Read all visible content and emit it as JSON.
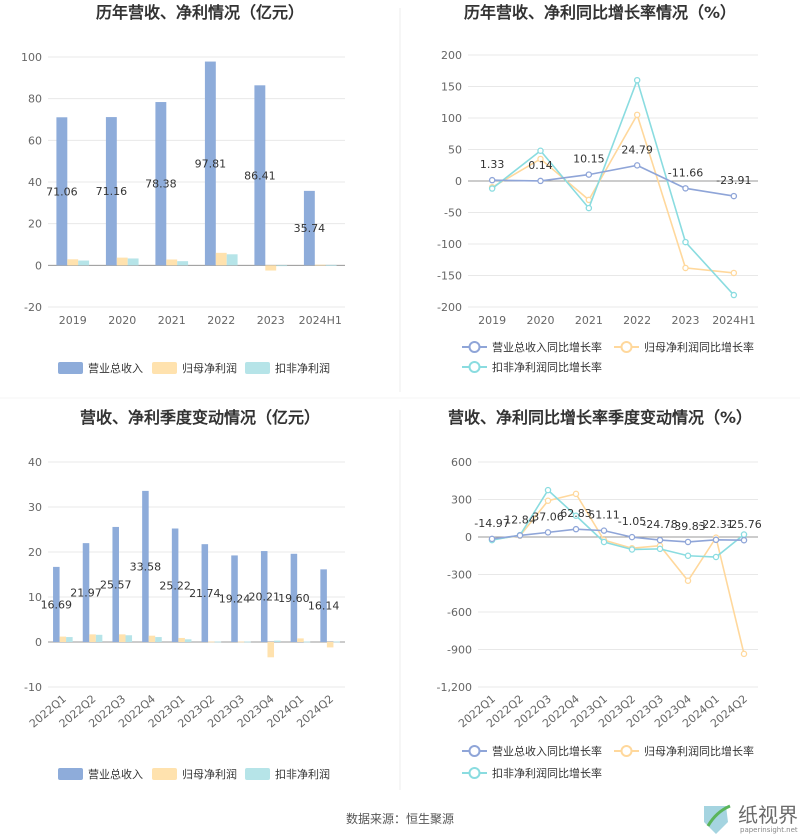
{
  "colors": {
    "revenue": "#8EACDA",
    "net_profit": "#FFE2AE",
    "deducted_profit": "#B6E4E8",
    "revenue_line": "#8FA5D8",
    "net_profit_line": "#FFD89C",
    "deducted_line": "#8ADCE0",
    "grid": "#E8E8E8",
    "axis": "#999999"
  },
  "footer": {
    "source": "数据来源：恒生聚源",
    "watermark_cn": "纸视界",
    "watermark_en": "paperinsight.net"
  },
  "chart_data": [
    {
      "id": "annual_amount",
      "type": "bar",
      "title": "历年营收、净利情况（亿元）",
      "categories": [
        "2019",
        "2020",
        "2021",
        "2022",
        "2023",
        "2024H1"
      ],
      "series": [
        {
          "name": "营业总收入",
          "values": [
            71.06,
            71.16,
            78.38,
            97.81,
            86.41,
            35.74
          ]
        },
        {
          "name": "归母净利润",
          "values": [
            2.9,
            3.7,
            2.8,
            6.0,
            -2.5,
            0.3
          ]
        },
        {
          "name": "扣非净利润",
          "values": [
            2.3,
            3.3,
            2.0,
            5.3,
            -0.2,
            0.2
          ]
        }
      ],
      "data_labels": [
        "71.06",
        "71.16",
        "78.38",
        "97.81",
        "86.41",
        "35.74"
      ],
      "yticks": [
        "100",
        "80",
        "60",
        "40",
        "20",
        "0",
        "-20"
      ],
      "ylim": [
        -20,
        100
      ],
      "grid": true,
      "legend_position": "bottom"
    },
    {
      "id": "annual_growth",
      "type": "line",
      "title": "历年营收、净利同比增长率情况（%）",
      "categories": [
        "2019",
        "2020",
        "2021",
        "2022",
        "2023",
        "2024H1"
      ],
      "series": [
        {
          "name": "营业总收入同比增长率",
          "values": [
            1.33,
            0.14,
            10.15,
            24.79,
            -11.66,
            -23.91
          ]
        },
        {
          "name": "归母净利润同比增长率",
          "values": [
            -10,
            35,
            -30,
            105,
            -138,
            -146
          ]
        },
        {
          "name": "扣非净利润同比增长率",
          "values": [
            -12,
            48,
            -43,
            160,
            -97,
            -181
          ]
        }
      ],
      "data_labels": [
        "1.33",
        "0.14",
        "10.15",
        "24.79",
        "-11.66",
        "-23.91"
      ],
      "yticks": [
        "200",
        "150",
        "100",
        "50",
        "0",
        "-50",
        "-100",
        "-150",
        "-200"
      ],
      "ylim": [
        -200,
        200
      ],
      "grid": true,
      "legend_position": "bottom"
    },
    {
      "id": "quarterly_amount",
      "type": "bar",
      "title": "营收、净利季度变动情况（亿元）",
      "categories": [
        "2022Q1",
        "2022Q2",
        "2022Q3",
        "2022Q4",
        "2023Q1",
        "2023Q2",
        "2023Q3",
        "2023Q4",
        "2024Q1",
        "2024Q2"
      ],
      "series": [
        {
          "name": "营业总收入",
          "values": [
            16.69,
            21.97,
            25.57,
            33.58,
            25.22,
            21.74,
            19.24,
            20.21,
            19.6,
            16.14
          ]
        },
        {
          "name": "归母净利润",
          "values": [
            1.2,
            1.7,
            1.7,
            1.4,
            0.9,
            0.1,
            0.1,
            -3.4,
            0.8,
            -1.2
          ]
        },
        {
          "name": "扣非净利润",
          "values": [
            1.1,
            1.6,
            1.5,
            1.1,
            0.6,
            0.1,
            0.1,
            0.3,
            0.1,
            0.1
          ]
        }
      ],
      "data_labels": [
        "16.69",
        "21.97",
        "25.57",
        "33.58",
        "25.22",
        "21.74",
        "19.24",
        "20.21",
        "19.60",
        "16.14"
      ],
      "yticks": [
        "40",
        "30",
        "20",
        "10",
        "0",
        "-10"
      ],
      "ylim": [
        -10,
        40
      ],
      "grid": true,
      "legend_position": "bottom"
    },
    {
      "id": "quarterly_growth",
      "type": "line",
      "title": "营收、净利同比增长率季度变动情况（%）",
      "categories": [
        "2022Q1",
        "2022Q2",
        "2022Q3",
        "2022Q4",
        "2023Q1",
        "2023Q2",
        "2023Q3",
        "2023Q4",
        "2024Q1",
        "2024Q2"
      ],
      "series": [
        {
          "name": "营业总收入同比增长率",
          "values": [
            -14.97,
            12.84,
            37.06,
            62.83,
            51.11,
            -1.05,
            -24.78,
            -39.83,
            -22.31,
            -25.76
          ]
        },
        {
          "name": "归母净利润同比增长率",
          "values": [
            -20,
            10,
            290,
            345,
            -25,
            -90,
            -70,
            -350,
            -5,
            -935
          ]
        },
        {
          "name": "扣非净利润同比增长率",
          "values": [
            -25,
            15,
            375,
            170,
            -40,
            -100,
            -95,
            -150,
            -160,
            20
          ]
        }
      ],
      "data_labels": [
        "-14.97",
        "12.84",
        "37.06",
        "62.83",
        "51.11",
        "-1.05",
        "-24.78",
        "-39.83",
        "-22.31",
        "-25.76"
      ],
      "yticks": [
        "600",
        "300",
        "0",
        "-300",
        "-600",
        "-900",
        "-1,200"
      ],
      "ylim": [
        -1200,
        600
      ],
      "grid": true,
      "legend_position": "bottom"
    }
  ]
}
